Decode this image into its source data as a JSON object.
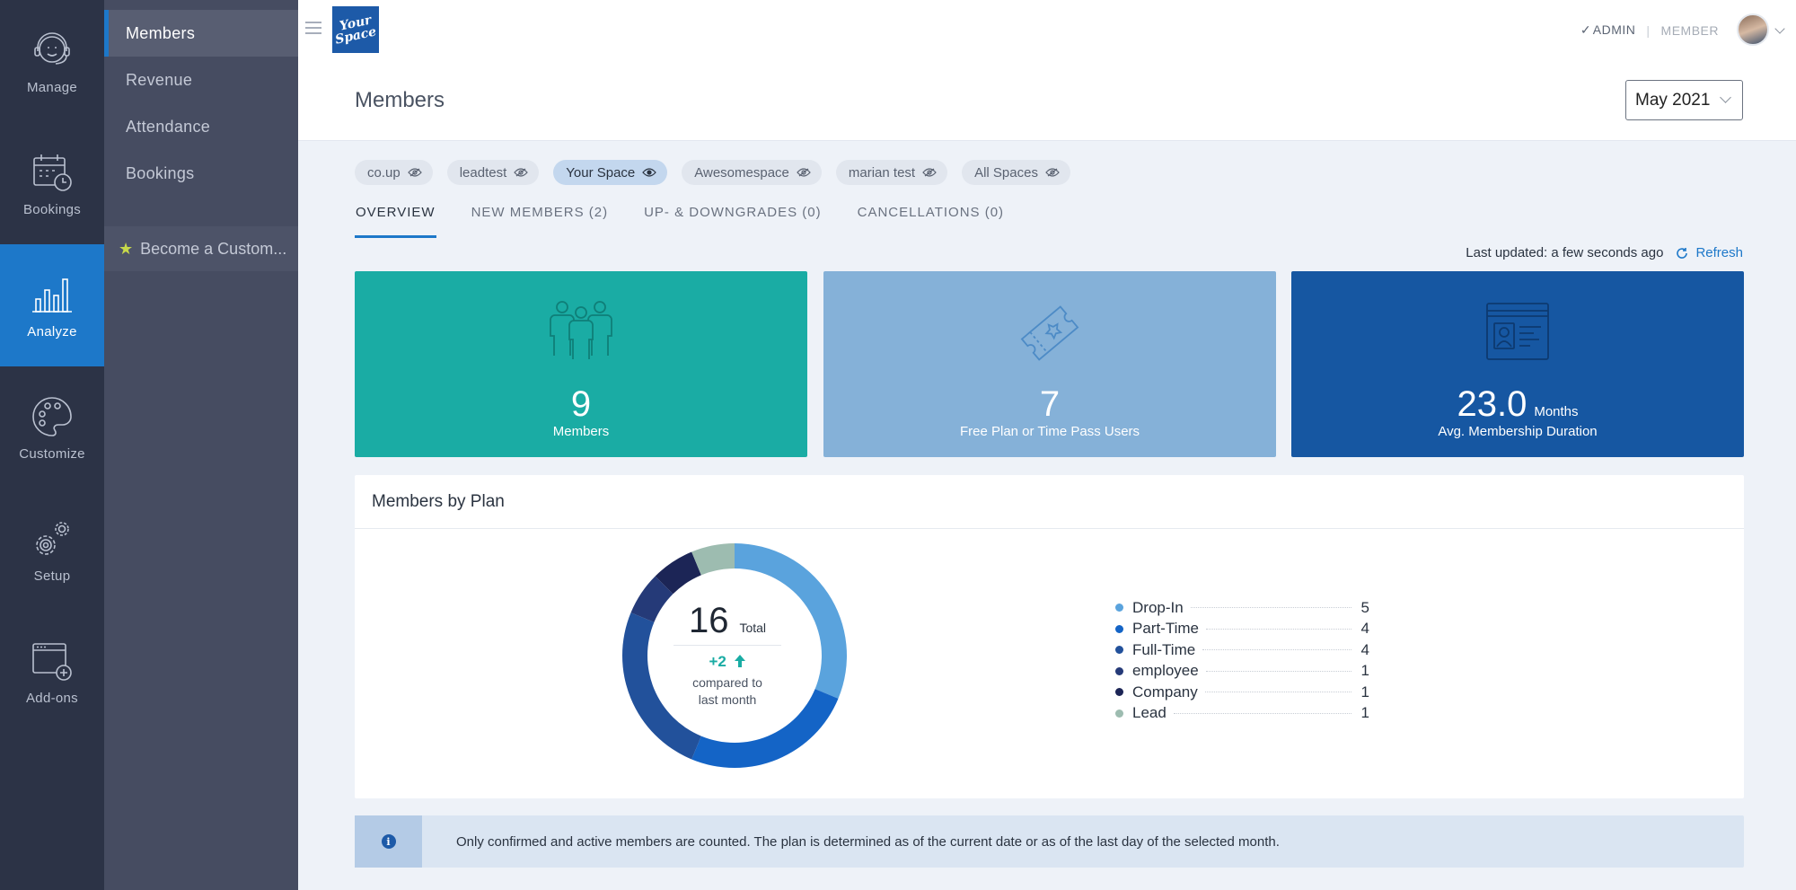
{
  "rail": {
    "items": [
      {
        "label": "Manage",
        "icon": "support-agent-icon"
      },
      {
        "label": "Bookings",
        "icon": "calendar-clock-icon"
      },
      {
        "label": "Analyze",
        "icon": "bar-chart-icon",
        "active": true
      },
      {
        "label": "Customize",
        "icon": "palette-icon"
      },
      {
        "label": "Setup",
        "icon": "gears-icon"
      },
      {
        "label": "Add-ons",
        "icon": "window-plus-icon"
      }
    ]
  },
  "subnav": {
    "items": [
      {
        "label": "Members",
        "active": true
      },
      {
        "label": "Revenue"
      },
      {
        "label": "Attendance"
      },
      {
        "label": "Bookings"
      }
    ],
    "promo": "Become a Custom..."
  },
  "topbar": {
    "logo_line1": "Your",
    "logo_line2": "Space",
    "role_admin": "ADMIN",
    "role_member": "MEMBER"
  },
  "page": {
    "title": "Members",
    "month": "May 2021"
  },
  "spaces": [
    {
      "label": "co.up",
      "visible": false
    },
    {
      "label": "leadtest",
      "visible": false
    },
    {
      "label": "Your Space",
      "visible": true
    },
    {
      "label": "Awesomespace",
      "visible": false
    },
    {
      "label": "marian test",
      "visible": false
    },
    {
      "label": "All Spaces",
      "visible": false
    }
  ],
  "tabs": [
    {
      "label": "OVERVIEW",
      "active": true
    },
    {
      "label": "NEW MEMBERS (2)"
    },
    {
      "label": "UP- & DOWNGRADES (0)"
    },
    {
      "label": "CANCELLATIONS (0)"
    }
  ],
  "status": {
    "last_updated": "Last updated: a few seconds ago",
    "refresh_label": "Refresh"
  },
  "stats": {
    "members": {
      "value": "9",
      "label": "Members"
    },
    "free": {
      "value": "7",
      "label": "Free Plan or Time Pass Users"
    },
    "duration": {
      "value": "23.0",
      "unit": "Months",
      "label": "Avg. Membership Duration"
    }
  },
  "plan": {
    "title": "Members by Plan",
    "total": "16",
    "total_label": "Total",
    "change": "+2",
    "change_note_1": "compared to",
    "change_note_2": "last month"
  },
  "chart_data": {
    "type": "pie",
    "categories": [
      "Drop-In",
      "Part-Time",
      "Full-Time",
      "employee",
      "Company",
      "Lead"
    ],
    "values": [
      5,
      4,
      4,
      1,
      1,
      1
    ],
    "colors": [
      "#5aa3dd",
      "#1464c6",
      "#22519b",
      "#253a78",
      "#1c2556",
      "#9dbcb0"
    ]
  },
  "info": {
    "text": "Only confirmed and active members are counted. The plan is determined as of the current date or as of the last day of the selected month."
  }
}
